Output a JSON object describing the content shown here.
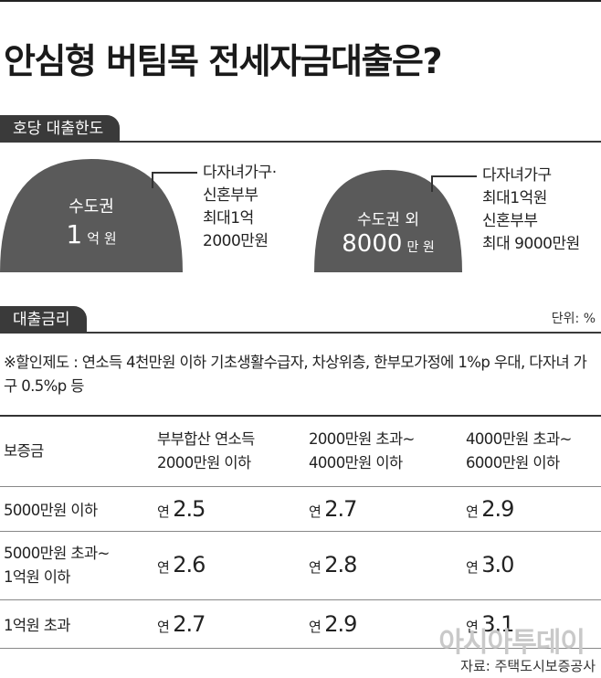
{
  "title": "안심형 버팀목 전세자금대출은?",
  "limit_section": {
    "tab_label": "호당 대출한도",
    "metro": {
      "region": "수도권",
      "amount_num": "1",
      "amount_unit": "억 원",
      "lines": [
        "다자녀가구·",
        "신혼부부",
        "최대1억",
        "2000만원"
      ]
    },
    "non_metro": {
      "region": "수도권 외",
      "amount_num": "8000",
      "amount_unit": "만 원",
      "lines": [
        "다자녀가구",
        "최대1억원",
        "신혼부부",
        "최대 9000만원"
      ]
    }
  },
  "rate_section": {
    "tab_label": "대출금리",
    "unit": "단위: %",
    "note": "※할인제도 : 연소득 4천만원 이하 기초생활수급자, 차상위층, 한부모가정에 1%p 우대, 다자녀 가구 0.5%p 등"
  },
  "table": {
    "col_guarantee": "보증금",
    "col1": [
      "부부합산 연소득",
      "2000만원 이하"
    ],
    "col2": [
      "2000만원 초과~",
      "4000만원 이하"
    ],
    "col3": [
      "4000만원 초과~",
      "6000만원 이하"
    ],
    "rate_prefix": "연",
    "rows": [
      {
        "label": [
          "5000만원 이하"
        ],
        "rates": [
          "2.5",
          "2.7",
          "2.9"
        ]
      },
      {
        "label": [
          "5000만원 초과~",
          "1억원 이하"
        ],
        "rates": [
          "2.6",
          "2.8",
          "3.0"
        ]
      },
      {
        "label": [
          "1억원 초과"
        ],
        "rates": [
          "2.7",
          "2.9",
          "3.1"
        ]
      }
    ]
  },
  "watermark": "아시아투데이",
  "source": "자료: 주택도시보증공사",
  "colors": {
    "dark": "#3a3a3a",
    "dome": "#5a5a5a"
  }
}
